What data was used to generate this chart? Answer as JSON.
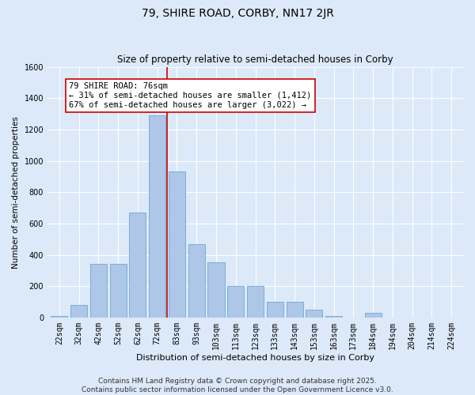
{
  "title": "79, SHIRE ROAD, CORBY, NN17 2JR",
  "subtitle": "Size of property relative to semi-detached houses in Corby",
  "xlabel": "Distribution of semi-detached houses by size in Corby",
  "ylabel": "Number of semi-detached properties",
  "bins": [
    "22sqm",
    "32sqm",
    "42sqm",
    "52sqm",
    "62sqm",
    "72sqm",
    "83sqm",
    "93sqm",
    "103sqm",
    "113sqm",
    "123sqm",
    "133sqm",
    "143sqm",
    "153sqm",
    "163sqm",
    "173sqm",
    "184sqm",
    "194sqm",
    "204sqm",
    "214sqm",
    "224sqm"
  ],
  "values": [
    10,
    80,
    340,
    340,
    670,
    1290,
    930,
    470,
    350,
    200,
    200,
    100,
    100,
    50,
    10,
    0,
    30,
    0,
    0,
    0,
    0
  ],
  "bar_color": "#aec6e8",
  "bar_edge_color": "#6aaad4",
  "vline_x_index": 5,
  "vline_color": "#cc0000",
  "annotation_title": "79 SHIRE ROAD: 76sqm",
  "annotation_line1": "← 31% of semi-detached houses are smaller (1,412)",
  "annotation_line2": "67% of semi-detached houses are larger (3,022) →",
  "annotation_box_facecolor": "#ffffff",
  "annotation_box_edgecolor": "#cc0000",
  "ylim": [
    0,
    1600
  ],
  "yticks": [
    0,
    200,
    400,
    600,
    800,
    1000,
    1200,
    1400,
    1600
  ],
  "footer1": "Contains HM Land Registry data © Crown copyright and database right 2025.",
  "footer2": "Contains public sector information licensed under the Open Government Licence v3.0.",
  "bg_color": "#dce9f8",
  "plot_bg_color": "#dce9f8",
  "grid_color": "#ffffff",
  "title_fontsize": 10,
  "subtitle_fontsize": 8.5,
  "ylabel_fontsize": 7.5,
  "xlabel_fontsize": 8,
  "tick_fontsize": 7,
  "footer_fontsize": 6.5,
  "annotation_fontsize": 7.5
}
